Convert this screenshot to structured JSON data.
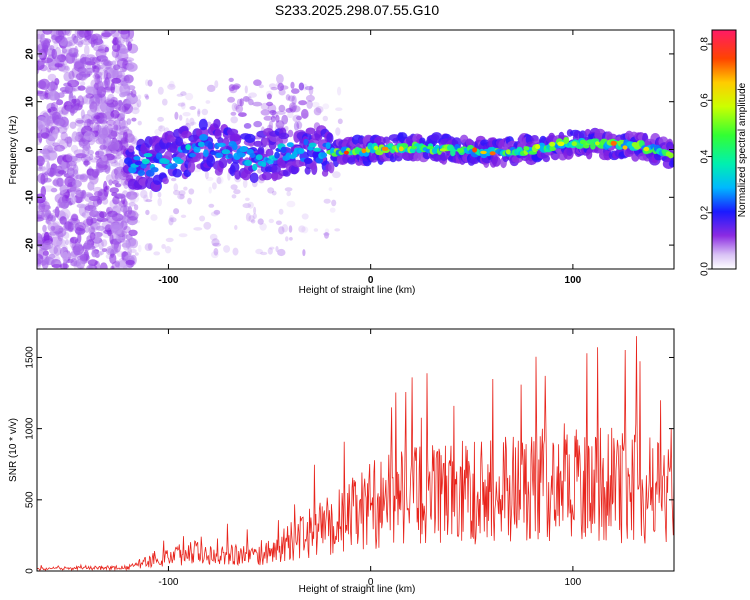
{
  "title": "S233.2025.298.07.55.G10",
  "chart_data": [
    {
      "type": "heatmap",
      "name": "spectrogram",
      "xlabel": "Height of straight line (km)",
      "ylabel": "Frequency (Hz)",
      "xlim": [
        -165,
        150
      ],
      "ylim": [
        -25,
        25
      ],
      "xticks": [
        -100,
        0,
        100
      ],
      "xtick_labels": [
        "-100",
        "0",
        "100"
      ],
      "yticks": [
        -20,
        -10,
        0,
        10,
        20
      ],
      "ytick_labels": [
        "-20",
        "-10",
        "0",
        "10",
        "20"
      ],
      "colorbar": {
        "label": "Normalized spectral amplitude",
        "range": [
          0,
          0.85
        ],
        "ticks": [
          0,
          0.2,
          0.4,
          0.6,
          0.8
        ],
        "tick_labels": [
          "0.0",
          "0.2",
          "0.4",
          "0.6",
          "0.8"
        ]
      },
      "ridge": [
        {
          "x": -118,
          "y": -4
        },
        {
          "x": -100,
          "y": -2
        },
        {
          "x": -80,
          "y": 1
        },
        {
          "x": -60,
          "y": -2
        },
        {
          "x": -40,
          "y": 0
        },
        {
          "x": -20,
          "y": -1
        },
        {
          "x": 0,
          "y": 0
        },
        {
          "x": 20,
          "y": 0.5
        },
        {
          "x": 40,
          "y": 0
        },
        {
          "x": 60,
          "y": -0.5
        },
        {
          "x": 80,
          "y": 0
        },
        {
          "x": 100,
          "y": 1.5
        },
        {
          "x": 120,
          "y": 1
        },
        {
          "x": 135,
          "y": 0.5
        },
        {
          "x": 148,
          "y": -1
        }
      ]
    },
    {
      "type": "line",
      "name": "snr",
      "xlabel": "Height of straight line (km)",
      "ylabel": "SNR (10 * v/v)",
      "xlim": [
        -165,
        150
      ],
      "ylim": [
        0,
        1700
      ],
      "xticks": [
        -100,
        0,
        100
      ],
      "xtick_labels": [
        "-100",
        "0",
        "100"
      ],
      "yticks": [
        0,
        500,
        1000,
        1500
      ],
      "ytick_labels": [
        "0",
        "500",
        "1000",
        "1500"
      ],
      "color": "#e8241c",
      "envelope": [
        {
          "x": -165,
          "y": 20
        },
        {
          "x": -120,
          "y": 30
        },
        {
          "x": -110,
          "y": 90
        },
        {
          "x": -90,
          "y": 170
        },
        {
          "x": -70,
          "y": 160
        },
        {
          "x": -55,
          "y": 130
        },
        {
          "x": -40,
          "y": 260
        },
        {
          "x": -25,
          "y": 380
        },
        {
          "x": -10,
          "y": 500
        },
        {
          "x": 5,
          "y": 640
        },
        {
          "x": 20,
          "y": 680
        },
        {
          "x": 40,
          "y": 700
        },
        {
          "x": 60,
          "y": 740
        },
        {
          "x": 80,
          "y": 780
        },
        {
          "x": 100,
          "y": 820
        },
        {
          "x": 120,
          "y": 780
        },
        {
          "x": 140,
          "y": 720
        },
        {
          "x": 150,
          "y": 650
        }
      ]
    }
  ]
}
